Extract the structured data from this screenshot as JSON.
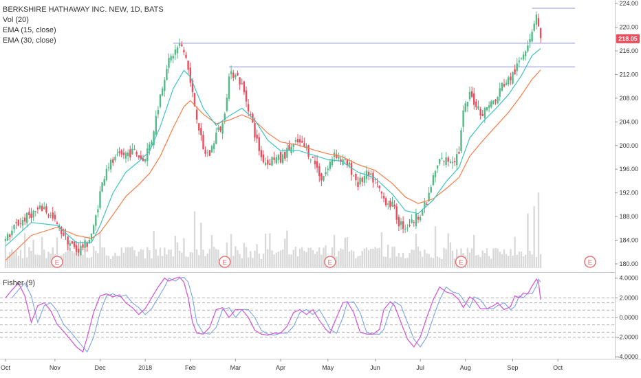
{
  "legend": {
    "symbol": "BERKSHIRE HATHAWAY INC. NEW, 1D, BATS",
    "volume": "Vol (20)",
    "ema_fast": "EMA (15, close)",
    "ema_slow": "EMA (30, close)"
  },
  "fisher_legend": "Fisher (9)",
  "last_price": "218.05",
  "colors": {
    "up": "#53b987",
    "down": "#eb4d5c",
    "ema_fast": "#3cc3c3",
    "ema_slow": "#f57c46",
    "level": "#c8c8e8",
    "fisher": "#d35bd3",
    "trigger": "#7aa3e5",
    "earnings": "#e57373",
    "volume": "#d9d9d9",
    "price_tag": "#eb4d5c"
  },
  "chart_data": [
    {
      "type": "candlestick",
      "title": "BERKSHIRE HATHAWAY INC. NEW, 1D, BATS",
      "x_ticks": [
        "Oct",
        "Nov",
        "Dec",
        "2018",
        "Feb",
        "Mar",
        "Apr",
        "May",
        "Jun",
        "Jul",
        "Aug",
        "Sep",
        "Oct"
      ],
      "x_tick_days": [
        0,
        23,
        44,
        65,
        86,
        107,
        128,
        150,
        172,
        193,
        214,
        236,
        257
      ],
      "y_ticks": [
        "180.00",
        "184.00",
        "188.00",
        "192.00",
        "196.00",
        "200.00",
        "204.00",
        "208.00",
        "212.00",
        "216.00",
        "220.00",
        "224.00"
      ],
      "ylim": [
        178.6,
        224.6
      ],
      "price_path": [
        [
          0,
          184
        ],
        [
          5,
          186.5
        ],
        [
          12,
          188.5
        ],
        [
          18,
          189.5
        ],
        [
          24,
          186.5
        ],
        [
          29,
          184
        ],
        [
          33,
          182.2
        ],
        [
          38,
          183.5
        ],
        [
          41,
          186
        ],
        [
          44,
          192
        ],
        [
          47,
          196.5
        ],
        [
          51,
          197.5
        ],
        [
          55,
          198.5
        ],
        [
          60,
          199
        ],
        [
          64,
          197.5
        ],
        [
          68,
          201
        ],
        [
          72,
          208.5
        ],
        [
          75,
          213.5
        ],
        [
          78,
          215.5
        ],
        [
          81,
          217
        ],
        [
          84,
          215
        ],
        [
          86,
          210.5
        ],
        [
          89,
          205
        ],
        [
          92,
          199
        ],
        [
          95,
          198.5
        ],
        [
          98,
          202
        ],
        [
          101,
          203.5
        ],
        [
          104,
          211.5
        ],
        [
          107,
          212.5
        ],
        [
          110,
          210
        ],
        [
          113,
          206.5
        ],
        [
          116,
          202
        ],
        [
          119,
          198
        ],
        [
          122,
          197
        ],
        [
          125,
          198
        ],
        [
          128,
          197.5
        ],
        [
          132,
          199.5
        ],
        [
          136,
          200.5
        ],
        [
          140,
          199.5
        ],
        [
          144,
          197
        ],
        [
          147,
          194.5
        ],
        [
          150,
          196
        ],
        [
          153,
          199
        ],
        [
          156,
          197.5
        ],
        [
          160,
          196.5
        ],
        [
          164,
          193.5
        ],
        [
          168,
          195
        ],
        [
          172,
          194
        ],
        [
          176,
          191
        ],
        [
          180,
          189.8
        ],
        [
          183,
          187
        ],
        [
          186,
          186.2
        ],
        [
          189,
          187
        ],
        [
          192,
          188.2
        ],
        [
          196,
          190.2
        ],
        [
          199,
          194.5
        ],
        [
          202,
          197.5
        ],
        [
          205,
          197.5
        ],
        [
          209,
          197.8
        ],
        [
          211,
          199
        ],
        [
          213,
          205.5
        ],
        [
          216,
          208.5
        ],
        [
          219,
          207
        ],
        [
          222,
          205.3
        ],
        [
          225,
          207.2
        ],
        [
          228,
          207.4
        ],
        [
          231,
          210.2
        ],
        [
          234,
          211
        ],
        [
          237,
          212.5
        ],
        [
          240,
          214.8
        ],
        [
          243,
          217.5
        ],
        [
          245,
          219.5
        ],
        [
          247,
          222.5
        ],
        [
          249,
          218
        ]
      ],
      "ema_15_path": [
        [
          0,
          183
        ],
        [
          12,
          187
        ],
        [
          24,
          186.5
        ],
        [
          33,
          183.6
        ],
        [
          40,
          183.6
        ],
        [
          44,
          186.5
        ],
        [
          50,
          192
        ],
        [
          56,
          195.5
        ],
        [
          62,
          197.3
        ],
        [
          67,
          199
        ],
        [
          72,
          203.2
        ],
        [
          78,
          209.6
        ],
        [
          83,
          212.7
        ],
        [
          86,
          211.6
        ],
        [
          92,
          206.3
        ],
        [
          98,
          203.4
        ],
        [
          104,
          205
        ],
        [
          110,
          206.3
        ],
        [
          116,
          204.3
        ],
        [
          122,
          200.9
        ],
        [
          128,
          199.1
        ],
        [
          136,
          199.2
        ],
        [
          144,
          198.3
        ],
        [
          150,
          197.6
        ],
        [
          156,
          197.4
        ],
        [
          164,
          195.5
        ],
        [
          172,
          194.5
        ],
        [
          180,
          191.8
        ],
        [
          186,
          189
        ],
        [
          192,
          188.5
        ],
        [
          199,
          190.8
        ],
        [
          205,
          193.9
        ],
        [
          211,
          196.3
        ],
        [
          216,
          201.3
        ],
        [
          222,
          204
        ],
        [
          228,
          206.2
        ],
        [
          234,
          208.6
        ],
        [
          240,
          211.8
        ],
        [
          245,
          215.2
        ],
        [
          249,
          216.4
        ]
      ],
      "ema_30_path": [
        [
          0,
          180.6
        ],
        [
          12,
          184.8
        ],
        [
          24,
          186.2
        ],
        [
          33,
          184.8
        ],
        [
          40,
          184.3
        ],
        [
          44,
          185.3
        ],
        [
          50,
          188.3
        ],
        [
          56,
          191.4
        ],
        [
          62,
          193.4
        ],
        [
          67,
          195.3
        ],
        [
          72,
          198.2
        ],
        [
          78,
          203
        ],
        [
          83,
          206.6
        ],
        [
          86,
          207.6
        ],
        [
          92,
          205.3
        ],
        [
          98,
          203.7
        ],
        [
          104,
          204.3
        ],
        [
          110,
          205.2
        ],
        [
          116,
          204.2
        ],
        [
          122,
          202.1
        ],
        [
          128,
          200.6
        ],
        [
          136,
          200.1
        ],
        [
          144,
          199.2
        ],
        [
          150,
          198.6
        ],
        [
          156,
          198.2
        ],
        [
          164,
          196.8
        ],
        [
          172,
          195.8
        ],
        [
          180,
          193.6
        ],
        [
          186,
          191.3
        ],
        [
          192,
          190.2
        ],
        [
          199,
          191
        ],
        [
          205,
          192.7
        ],
        [
          211,
          194.6
        ],
        [
          216,
          198.2
        ],
        [
          222,
          200.8
        ],
        [
          228,
          203.2
        ],
        [
          234,
          205.6
        ],
        [
          240,
          208.5
        ],
        [
          245,
          211.2
        ],
        [
          249,
          212.8
        ]
      ],
      "levels": [
        {
          "value": 223.2,
          "from_day": 245,
          "to_day": 265
        },
        {
          "value": 217.3,
          "from_day": 78,
          "to_day": 265
        },
        {
          "value": 213.3,
          "from_day": 104,
          "to_day": 265
        }
      ],
      "last_value": 218.05,
      "earnings_days": [
        24,
        102,
        151,
        212,
        272
      ],
      "earnings_label": "E",
      "volume": {
        "series": "Vol (20)",
        "spikes": [
          [
            88,
            0.75
          ],
          [
            91,
            0.6
          ],
          [
            105,
            0.45
          ],
          [
            158,
            0.4
          ],
          [
            200,
            0.55
          ],
          [
            243,
            0.72
          ],
          [
            246,
            0.82
          ],
          [
            248,
            1.0
          ]
        ]
      }
    },
    {
      "type": "line",
      "title": "Fisher (9)",
      "y_ticks": [
        "4.0000",
        "2.0000",
        "0.0000",
        "-2.0000",
        "-4.0000"
      ],
      "ylim": [
        -4.2,
        4.4
      ],
      "dashed_levels": [
        2.0,
        1.5,
        0.75,
        0,
        -0.75,
        -1.5,
        -2.0
      ],
      "fisher_path": [
        [
          0,
          2.0
        ],
        [
          3,
          2.8
        ],
        [
          6,
          3.5
        ],
        [
          9,
          2.2
        ],
        [
          12,
          -0.5
        ],
        [
          15,
          1.2
        ],
        [
          18,
          1.5
        ],
        [
          21,
          0.7
        ],
        [
          24,
          -0.7
        ],
        [
          27,
          -1.4
        ],
        [
          30,
          -2.2
        ],
        [
          33,
          -3.0
        ],
        [
          36,
          -3.5
        ],
        [
          38,
          -2.0
        ],
        [
          41,
          0.5
        ],
        [
          44,
          2.2
        ],
        [
          47,
          2.4
        ],
        [
          50,
          2.1
        ],
        [
          53,
          2.3
        ],
        [
          56,
          1.5
        ],
        [
          59,
          1.0
        ],
        [
          62,
          0.3
        ],
        [
          65,
          0.9
        ],
        [
          68,
          2.0
        ],
        [
          71,
          3.1
        ],
        [
          74,
          4.0
        ],
        [
          76,
          3.7
        ],
        [
          79,
          4.0
        ],
        [
          81,
          4.1
        ],
        [
          83,
          3.6
        ],
        [
          85,
          2.0
        ],
        [
          87,
          -0.5
        ],
        [
          89,
          -1.6
        ],
        [
          92,
          -1.7
        ],
        [
          95,
          -1.0
        ],
        [
          98,
          0.8
        ],
        [
          101,
          1.0
        ],
        [
          104,
          0.0
        ],
        [
          107,
          0.8
        ],
        [
          110,
          0.8
        ],
        [
          113,
          0.0
        ],
        [
          116,
          -1.3
        ],
        [
          119,
          -1.7
        ],
        [
          122,
          -1.8
        ],
        [
          125,
          -1.6
        ],
        [
          128,
          -1.6
        ],
        [
          131,
          -0.9
        ],
        [
          134,
          0.5
        ],
        [
          137,
          0.8
        ],
        [
          140,
          0.3
        ],
        [
          143,
          0.8
        ],
        [
          146,
          -0.3
        ],
        [
          149,
          -1.2
        ],
        [
          151,
          -1.6
        ],
        [
          154,
          0.0
        ],
        [
          157,
          1.5
        ],
        [
          159,
          1.6
        ],
        [
          162,
          0.5
        ],
        [
          165,
          -1.5
        ],
        [
          168,
          -1.7
        ],
        [
          171,
          -1.7
        ],
        [
          174,
          -1.2
        ],
        [
          176,
          0.8
        ],
        [
          179,
          1.6
        ],
        [
          181,
          1.2
        ],
        [
          184,
          -0.5
        ],
        [
          187,
          -2.2
        ],
        [
          190,
          -3.0
        ],
        [
          193,
          -2.0
        ],
        [
          196,
          0.0
        ],
        [
          199,
          1.8
        ],
        [
          202,
          3.1
        ],
        [
          205,
          2.6
        ],
        [
          208,
          2.4
        ],
        [
          211,
          1.8
        ],
        [
          213,
          1.0
        ],
        [
          216,
          2.1
        ],
        [
          218,
          1.8
        ],
        [
          221,
          0.9
        ],
        [
          224,
          0.9
        ],
        [
          227,
          1.2
        ],
        [
          229,
          1.5
        ],
        [
          232,
          0.8
        ],
        [
          235,
          1.1
        ],
        [
          237,
          2.2
        ],
        [
          239,
          2.0
        ],
        [
          241,
          2.5
        ],
        [
          243,
          2.4
        ],
        [
          245,
          3.2
        ],
        [
          247,
          3.9
        ],
        [
          248,
          3.6
        ],
        [
          249,
          1.8
        ]
      ],
      "trigger_lag": 1
    }
  ]
}
